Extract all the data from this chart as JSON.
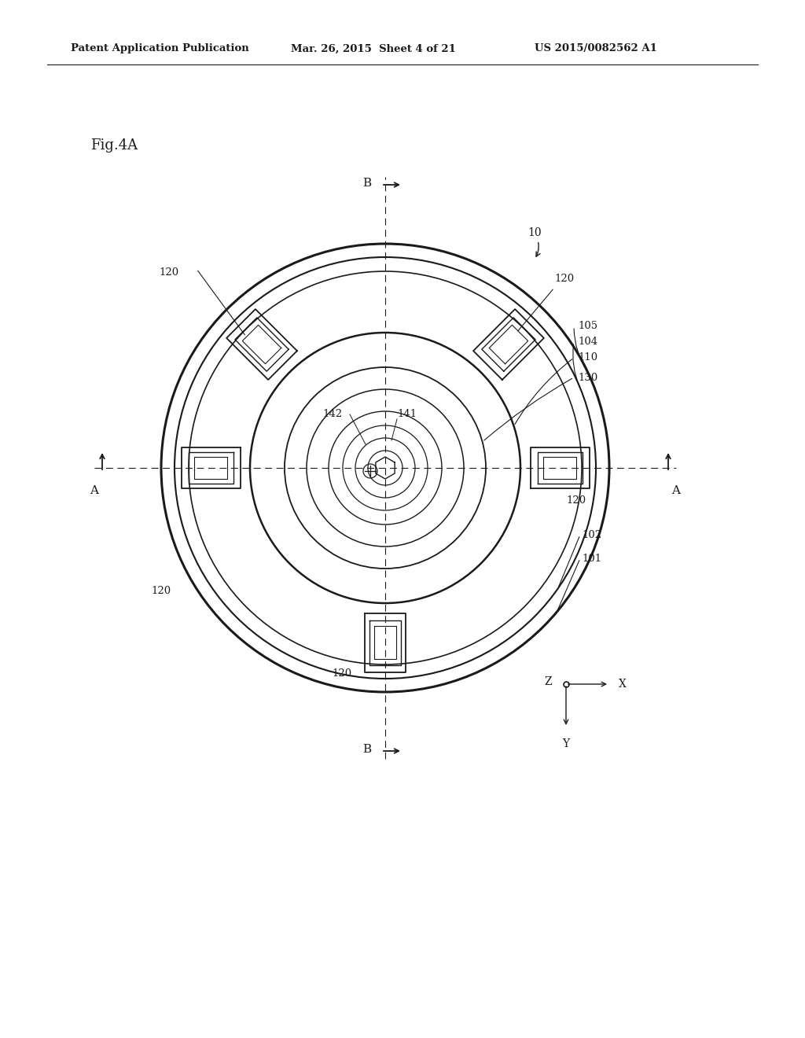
{
  "fig_label": "Fig.4A",
  "header_left": "Patent Application Publication",
  "header_mid": "Mar. 26, 2015  Sheet 4 of 21",
  "header_right": "US 2015/0082562 A1",
  "bg_color": "#ffffff",
  "line_color": "#1a1a1a"
}
